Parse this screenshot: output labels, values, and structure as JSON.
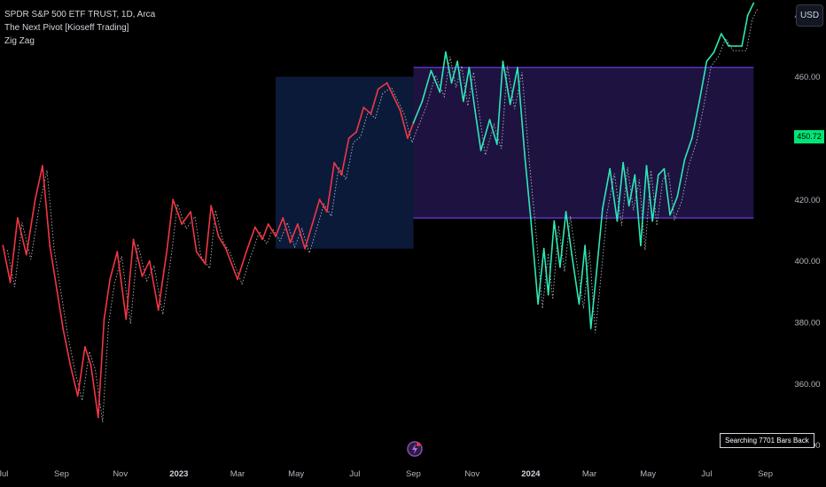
{
  "legend": {
    "symbol": "SPDR S&P 500 ETF TRUST, 1D, Arca",
    "indicator_1": "The Next Pivot [Kioseff Trading]",
    "indicator_2": "Zig Zag"
  },
  "currency_button": "USD",
  "status_label": "Searching 7701 Bars Back",
  "last_price": "450.72",
  "colors": {
    "background": "#000000",
    "history_line": "#f23645",
    "forecast_line": "#2ee8b6",
    "history_box": "#0c1a3a",
    "range_box": "#1e1240",
    "range_border": "#6a3ae0",
    "price_badge": "#00e676"
  },
  "chart_data": {
    "type": "line",
    "title": "SPDR S&P 500 ETF TRUST, 1D, Arca",
    "xlabel": "",
    "ylabel": "",
    "ylim": [
      335,
      485
    ],
    "y_ticks": [
      340,
      360,
      380,
      400,
      420,
      440,
      460,
      480
    ],
    "x_ticks": [
      {
        "label": "Jul",
        "x": 0
      },
      {
        "label": "Sep",
        "x": 2
      },
      {
        "label": "Nov",
        "x": 4
      },
      {
        "label": "2023",
        "x": 6
      },
      {
        "label": "Mar",
        "x": 8
      },
      {
        "label": "May",
        "x": 10
      },
      {
        "label": "Jul",
        "x": 12
      },
      {
        "label": "Sep",
        "x": 14
      },
      {
        "label": "Nov",
        "x": 16
      },
      {
        "label": "2024",
        "x": 18
      },
      {
        "label": "Mar",
        "x": 20
      },
      {
        "label": "May",
        "x": 22
      },
      {
        "label": "Jul",
        "x": 24
      },
      {
        "label": "Sep",
        "x": 26
      }
    ],
    "xlim": [
      -0.1,
      26.8
    ],
    "shaded_regions": [
      {
        "name": "",
        "x0": 9.3,
        "x1": 14.0,
        "y0": 404,
        "y1": 460
      },
      {
        "name": "",
        "x0": 14.0,
        "x1": 25.6,
        "y0": 414,
        "y1": 463
      }
    ],
    "series": [
      {
        "name": "",
        "style": "history",
        "x": [
          0,
          0.25,
          0.5,
          0.8,
          1.1,
          1.35,
          1.6,
          1.85,
          2.05,
          2.3,
          2.55,
          2.8,
          3.0,
          3.25,
          3.45,
          3.65,
          3.9,
          4.2,
          4.45,
          4.75,
          5.0,
          5.3,
          5.6,
          5.8,
          6.1,
          6.4,
          6.6,
          6.9,
          7.1,
          7.35,
          7.6,
          7.8,
          8.0,
          8.3,
          8.6,
          8.85,
          9.05,
          9.3,
          9.55,
          9.8,
          10.05,
          10.3,
          10.55,
          10.8,
          11.05,
          11.3,
          11.55,
          11.8,
          12.05,
          12.3,
          12.55,
          12.8,
          13.1,
          13.3,
          13.55,
          13.8,
          14.0
        ],
        "y": [
          405,
          393,
          414,
          402,
          420,
          431,
          405,
          390,
          378,
          366,
          356,
          372,
          366,
          349,
          381,
          394,
          403,
          381,
          407,
          395,
          400,
          384,
          404,
          420,
          412,
          416,
          403,
          399,
          418,
          408,
          404,
          399,
          394,
          403,
          411,
          407,
          412,
          408,
          414,
          406,
          412,
          404,
          412,
          420,
          416,
          432,
          428,
          440,
          442,
          450,
          448,
          456,
          458,
          454,
          449,
          440,
          445
        ]
      },
      {
        "name": "",
        "style": "forecast",
        "x": [
          14.0,
          14.3,
          14.6,
          14.9,
          15.1,
          15.3,
          15.5,
          15.7,
          15.9,
          16.1,
          16.3,
          16.6,
          16.85,
          17.05,
          17.3,
          17.55,
          17.8,
          18.0,
          18.25,
          18.45,
          18.6,
          18.8,
          19.0,
          19.2,
          19.4,
          19.65,
          19.85,
          20.05,
          20.25,
          20.45,
          20.7,
          20.95,
          21.15,
          21.35,
          21.55,
          21.75,
          21.95,
          22.15,
          22.35,
          22.55,
          22.75,
          23.0,
          23.25,
          23.5,
          23.75,
          24.0,
          24.25,
          24.5,
          24.75,
          25.0,
          25.2,
          25.4,
          25.6
        ],
        "y": [
          445,
          452,
          462,
          455,
          468,
          458,
          465,
          452,
          463,
          449,
          436,
          446,
          438,
          465,
          451,
          463,
          434,
          414,
          386,
          404,
          389,
          413,
          398,
          416,
          402,
          386,
          405,
          378,
          397,
          417,
          430,
          413,
          432,
          418,
          428,
          405,
          431,
          413,
          428,
          430,
          415,
          421,
          433,
          440,
          452,
          465,
          468,
          474,
          470,
          470,
          470,
          480,
          484
        ]
      }
    ]
  }
}
